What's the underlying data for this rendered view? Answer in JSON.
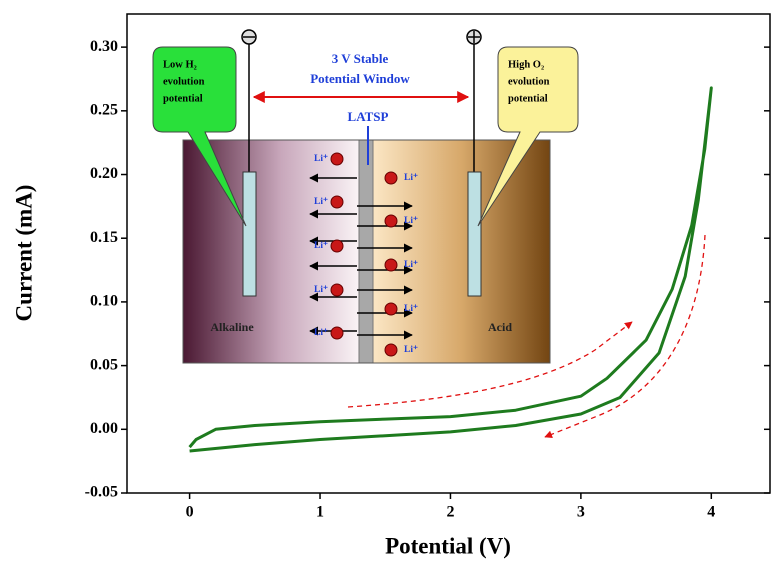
{
  "chart_data": {
    "type": "line",
    "xlabel": "Potential (V)",
    "ylabel": "Current (mA)",
    "color": "#1e7b1e",
    "x": [
      0,
      0.5,
      1,
      1.5,
      2,
      2.5,
      3,
      3.3,
      3.6,
      3.8,
      3.9,
      4.0,
      3.95,
      3.85,
      3.7,
      3.5,
      3.2,
      3.0,
      2.5,
      2,
      1.5,
      1,
      0.5,
      0.2,
      0.05,
      0
    ],
    "values": [
      -0.017,
      -0.012,
      -0.008,
      -0.005,
      -0.002,
      0.003,
      0.012,
      0.025,
      0.06,
      0.12,
      0.18,
      0.268,
      0.22,
      0.16,
      0.11,
      0.07,
      0.04,
      0.026,
      0.015,
      0.01,
      0.008,
      0.006,
      0.003,
      0.0,
      -0.008,
      -0.014
    ],
    "xlim": [
      -0.48,
      4.45
    ],
    "ylim": [
      -0.05,
      0.326
    ],
    "xticks": [
      0,
      1,
      2,
      3,
      4
    ],
    "yticks": [
      {
        "value": -0.05,
        "label": "-0.05"
      },
      {
        "value": 0,
        "label": "0.00"
      },
      {
        "value": 0.05,
        "label": "0.05"
      },
      {
        "value": 0.1,
        "label": "0.10"
      },
      {
        "value": 0.15,
        "label": "0.15"
      },
      {
        "value": 0.2,
        "label": "0.20"
      },
      {
        "value": 0.25,
        "label": "0.25"
      },
      {
        "value": 0.3,
        "label": "0.30"
      }
    ],
    "inset": {
      "window": [
        "3 V Stable",
        "Potential Window"
      ],
      "membrane": "LATSP",
      "left_callout": [
        "Low H₂",
        "evolution",
        "potential"
      ],
      "right_callout": [
        "High O₂",
        "evolution",
        "potential"
      ],
      "left_label": "Alkaline",
      "right_label": "Acid",
      "ions": [
        "Li⁺",
        "Li⁺",
        "Li⁺",
        "Li⁺",
        "Li⁺",
        "Li⁺",
        "Li⁺",
        "Li⁺",
        "Li⁺",
        "Li⁺"
      ]
    }
  }
}
